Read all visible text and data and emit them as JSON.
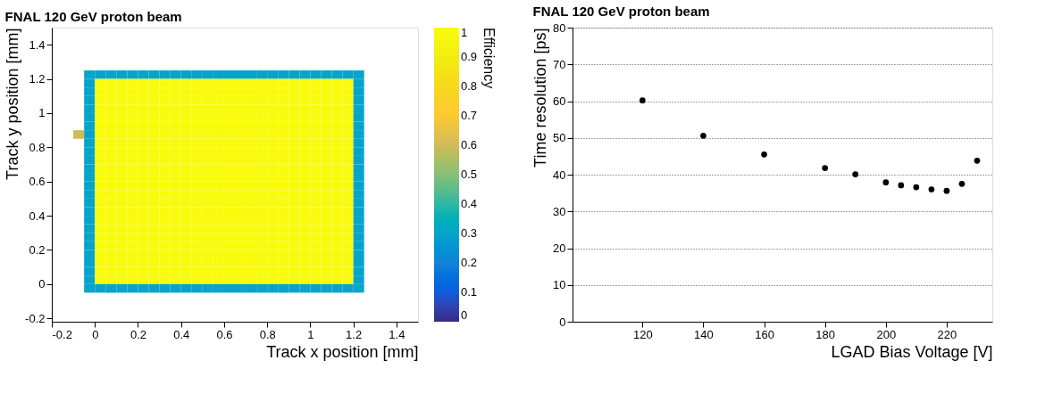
{
  "chart_data": [
    {
      "type": "heatmap",
      "title": "FNAL 120 GeV proton beam",
      "xlabel": "Track x position [mm]",
      "ylabel": "Track y position [mm]",
      "clabel": "Efficiency",
      "xlim": [
        -0.2,
        1.5
      ],
      "ylim": [
        -0.22,
        1.5
      ],
      "xticks": [
        -0.2,
        0,
        0.2,
        0.4,
        0.6,
        0.8,
        1,
        1.2,
        1.4
      ],
      "yticks": [
        -0.2,
        0,
        0.2,
        0.4,
        0.6,
        0.8,
        1,
        1.2,
        1.4
      ],
      "clim": [
        0,
        1
      ],
      "cticks": [
        0,
        0.1,
        0.2,
        0.3,
        0.4,
        0.5,
        0.6,
        0.7,
        0.8,
        0.9,
        1
      ],
      "colors": [
        "#352a87",
        "#0f5cdd",
        "#1481d6",
        "#06a4ca",
        "#2eb7a4",
        "#87bf77",
        "#d1bb59",
        "#fec832",
        "#f5d81c",
        "#f2ee10",
        "#f9fb0e"
      ],
      "x": [
        -0.075,
        -0.025,
        0.025,
        0.075,
        0.125,
        0.175,
        0.225,
        0.275,
        0.325,
        0.375,
        0.425,
        0.475,
        0.525,
        0.575,
        0.625,
        0.675,
        0.725,
        0.775,
        0.825,
        0.875,
        0.925,
        0.975,
        1.025,
        1.075,
        1.125,
        1.175,
        1.225
      ],
      "y": [
        1.225,
        1.175,
        1.125,
        1.075,
        1.025,
        0.975,
        0.925,
        0.875,
        0.825,
        0.775,
        0.725,
        0.675,
        0.625,
        0.575,
        0.525,
        0.475,
        0.425,
        0.375,
        0.325,
        0.275,
        0.225,
        0.175,
        0.125,
        0.075,
        0.025,
        -0.025
      ],
      "cells": [
        [
          null,
          0.3,
          0.3,
          0.3,
          0.3,
          0.3,
          0.3,
          0.3,
          0.3,
          0.3,
          0.3,
          0.3,
          0.3,
          0.3,
          0.3,
          0.3,
          0.3,
          0.3,
          0.3,
          0.3,
          0.3,
          0.3,
          0.3,
          0.3,
          0.3,
          0.3,
          0.3
        ],
        [
          null,
          0.3,
          1,
          1,
          1,
          1,
          1,
          1,
          1,
          1,
          1,
          1,
          1,
          1,
          1,
          1,
          1,
          1,
          1,
          1,
          1,
          1,
          1,
          1,
          1,
          1,
          0.3
        ],
        [
          null,
          0.3,
          1,
          1,
          1,
          1,
          1,
          1,
          1,
          1,
          1,
          1,
          1,
          1,
          1,
          1,
          1,
          1,
          1,
          1,
          1,
          1,
          1,
          1,
          1,
          1,
          0.3
        ],
        [
          null,
          0.3,
          1,
          1,
          1,
          1,
          1,
          1,
          1,
          1,
          1,
          1,
          1,
          1,
          1,
          1,
          1,
          1,
          1,
          1,
          1,
          1,
          1,
          1,
          1,
          1,
          0.3
        ],
        [
          null,
          0.3,
          1,
          1,
          1,
          1,
          1,
          1,
          1,
          1,
          1,
          1,
          1,
          1,
          1,
          1,
          1,
          1,
          1,
          1,
          1,
          1,
          1,
          1,
          1,
          1,
          0.3
        ],
        [
          null,
          0.3,
          1,
          1,
          1,
          1,
          1,
          1,
          1,
          1,
          1,
          1,
          1,
          1,
          1,
          1,
          1,
          1,
          1,
          1,
          1,
          1,
          1,
          1,
          1,
          1,
          0.3
        ],
        [
          null,
          0.3,
          1,
          1,
          1,
          1,
          1,
          1,
          1,
          1,
          1,
          1,
          1,
          1,
          1,
          1,
          1,
          1,
          1,
          1,
          1,
          1,
          1,
          1,
          1,
          1,
          0.3
        ],
        [
          0.6,
          0.3,
          1,
          1,
          1,
          1,
          1,
          1,
          1,
          1,
          1,
          1,
          1,
          1,
          1,
          1,
          1,
          1,
          1,
          1,
          1,
          1,
          1,
          1,
          1,
          1,
          0.3
        ],
        [
          null,
          0.3,
          1,
          1,
          1,
          1,
          1,
          1,
          1,
          1,
          1,
          1,
          1,
          1,
          1,
          1,
          1,
          1,
          1,
          1,
          1,
          1,
          1,
          1,
          1,
          1,
          0.3
        ],
        [
          null,
          0.3,
          1,
          1,
          1,
          1,
          1,
          1,
          1,
          1,
          1,
          1,
          1,
          1,
          1,
          1,
          1,
          1,
          1,
          1,
          1,
          1,
          1,
          1,
          1,
          1,
          0.3
        ],
        [
          null,
          0.3,
          1,
          1,
          1,
          1,
          1,
          1,
          1,
          1,
          1,
          1,
          1,
          1,
          1,
          1,
          1,
          1,
          1,
          1,
          1,
          1,
          1,
          1,
          1,
          1,
          0.3
        ],
        [
          null,
          0.3,
          1,
          1,
          1,
          1,
          1,
          1,
          1,
          1,
          1,
          1,
          1,
          1,
          1,
          1,
          1,
          1,
          1,
          1,
          1,
          1,
          1,
          1,
          1,
          1,
          0.3
        ],
        [
          null,
          0.3,
          1,
          1,
          1,
          1,
          1,
          1,
          1,
          1,
          1,
          1,
          1,
          1,
          1,
          1,
          1,
          1,
          1,
          1,
          1,
          1,
          1,
          1,
          1,
          1,
          0.3
        ],
        [
          null,
          0.3,
          1,
          1,
          1,
          1,
          1,
          1,
          1,
          1,
          1,
          1,
          1,
          1,
          1,
          1,
          1,
          1,
          1,
          1,
          1,
          1,
          1,
          1,
          1,
          1,
          0.3
        ],
        [
          null,
          0.3,
          1,
          1,
          1,
          1,
          1,
          1,
          1,
          1,
          1,
          1,
          1,
          1,
          1,
          1,
          1,
          1,
          1,
          1,
          1,
          1,
          1,
          1,
          1,
          1,
          0.3
        ],
        [
          null,
          0.3,
          1,
          1,
          1,
          1,
          1,
          1,
          1,
          1,
          1,
          1,
          1,
          1,
          1,
          1,
          1,
          1,
          1,
          1,
          1,
          1,
          1,
          1,
          1,
          1,
          0.3
        ],
        [
          null,
          0.3,
          1,
          1,
          1,
          1,
          1,
          1,
          1,
          1,
          1,
          1,
          1,
          1,
          1,
          1,
          1,
          1,
          1,
          1,
          1,
          1,
          1,
          1,
          1,
          1,
          0.3
        ],
        [
          null,
          0.3,
          1,
          1,
          1,
          1,
          1,
          1,
          1,
          1,
          1,
          1,
          1,
          1,
          1,
          1,
          1,
          1,
          1,
          1,
          1,
          1,
          1,
          1,
          1,
          1,
          0.3
        ],
        [
          null,
          0.3,
          1,
          1,
          1,
          1,
          1,
          1,
          1,
          1,
          1,
          1,
          1,
          1,
          1,
          1,
          1,
          1,
          1,
          1,
          1,
          1,
          1,
          1,
          1,
          1,
          0.3
        ],
        [
          null,
          0.3,
          1,
          1,
          1,
          1,
          1,
          1,
          1,
          1,
          1,
          1,
          1,
          1,
          1,
          1,
          1,
          1,
          1,
          1,
          1,
          1,
          1,
          1,
          1,
          1,
          0.3
        ],
        [
          null,
          0.3,
          1,
          1,
          1,
          1,
          1,
          1,
          1,
          1,
          1,
          1,
          1,
          1,
          1,
          1,
          1,
          1,
          1,
          1,
          1,
          1,
          1,
          1,
          1,
          1,
          0.3
        ],
        [
          null,
          0.3,
          1,
          1,
          1,
          1,
          1,
          1,
          1,
          1,
          1,
          1,
          1,
          1,
          1,
          1,
          1,
          1,
          1,
          1,
          1,
          1,
          1,
          1,
          1,
          1,
          0.3
        ],
        [
          null,
          0.3,
          1,
          1,
          1,
          1,
          1,
          1,
          1,
          1,
          1,
          1,
          1,
          1,
          1,
          1,
          1,
          1,
          1,
          1,
          1,
          1,
          1,
          1,
          1,
          1,
          0.3
        ],
        [
          null,
          0.3,
          1,
          1,
          1,
          1,
          1,
          1,
          1,
          1,
          1,
          1,
          1,
          1,
          1,
          1,
          1,
          1,
          1,
          1,
          1,
          1,
          1,
          1,
          1,
          1,
          0.3
        ],
        [
          null,
          0.3,
          1,
          1,
          1,
          1,
          1,
          1,
          1,
          1,
          1,
          1,
          1,
          1,
          1,
          1,
          1,
          1,
          1,
          1,
          1,
          1,
          1,
          1,
          1,
          1,
          0.3
        ],
        [
          null,
          0.3,
          0.3,
          0.3,
          0.3,
          0.3,
          0.3,
          0.3,
          0.3,
          0.3,
          0.3,
          0.3,
          0.3,
          0.3,
          0.3,
          0.3,
          0.3,
          0.3,
          0.3,
          0.3,
          0.3,
          0.3,
          0.3,
          0.3,
          0.3,
          0.3,
          0.3
        ]
      ]
    },
    {
      "type": "scatter",
      "title": "FNAL 120 GeV proton beam",
      "xlabel": "LGAD Bias Voltage [V]",
      "ylabel": "Time resolution [ps]",
      "xlim": [
        97,
        235
      ],
      "ylim": [
        0,
        80
      ],
      "xticks": [
        120,
        140,
        160,
        180,
        200,
        220
      ],
      "yticks": [
        0,
        10,
        20,
        30,
        40,
        50,
        60,
        70,
        80
      ],
      "grid": "y",
      "marker": "circle",
      "x": [
        120,
        140,
        160,
        180,
        190,
        200,
        205,
        210,
        215,
        220,
        225,
        230
      ],
      "series": [
        {
          "color": "#000000",
          "values": [
            60.2,
            50.6,
            45.5,
            41.8,
            40.1,
            37.9,
            37.1,
            36.6,
            36.0,
            35.6,
            37.5,
            43.8
          ]
        }
      ]
    }
  ]
}
